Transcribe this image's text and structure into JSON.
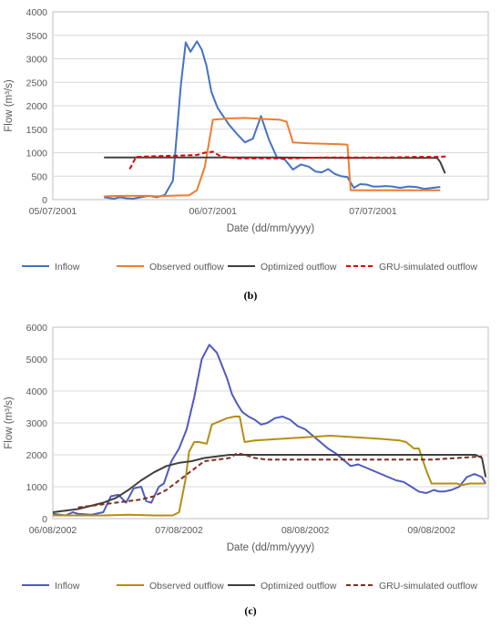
{
  "chart_data": [
    {
      "type": "line",
      "panel_label": "(b)",
      "xlabel": "Date (dd/mm/yyyy)",
      "ylabel": "Flow (m³/s)",
      "ylim": [
        0,
        4000
      ],
      "yticks": [
        0,
        500,
        1000,
        1500,
        2000,
        2500,
        3000,
        3500,
        4000
      ],
      "xlim": [
        0,
        2.72
      ],
      "x_unit": "days since 05/07/2001",
      "xtick_positions": [
        0,
        1,
        2
      ],
      "xtick_labels": [
        "05/07/2001",
        "06/07/2001",
        "07/07/2001"
      ],
      "grid": "horizontal",
      "legend_position": "bottom",
      "series": [
        {
          "name": "Inflow",
          "color": "#4472C4",
          "dash": "solid",
          "x": [
            0.32,
            0.38,
            0.42,
            0.46,
            0.5,
            0.55,
            0.6,
            0.65,
            0.7,
            0.75,
            0.8,
            0.83,
            0.86,
            0.9,
            0.93,
            0.96,
            0.99,
            1.03,
            1.06,
            1.1,
            1.15,
            1.2,
            1.25,
            1.3,
            1.35,
            1.4,
            1.45,
            1.5,
            1.55,
            1.6,
            1.64,
            1.68,
            1.72,
            1.76,
            1.8,
            1.84,
            1.88,
            1.92,
            1.96,
            2.0,
            2.04,
            2.08,
            2.12,
            2.17,
            2.22,
            2.27,
            2.32,
            2.37,
            2.42
          ],
          "y": [
            50,
            20,
            50,
            30,
            20,
            50,
            80,
            50,
            100,
            400,
            2450,
            3350,
            3150,
            3370,
            3200,
            2850,
            2300,
            1950,
            1800,
            1600,
            1400,
            1220,
            1300,
            1780,
            1280,
            900,
            850,
            640,
            750,
            700,
            600,
            580,
            650,
            550,
            500,
            480,
            250,
            330,
            320,
            280,
            280,
            290,
            280,
            250,
            280,
            270,
            230,
            250,
            270
          ]
        },
        {
          "name": "Observed outflow",
          "color": "#ED7D31",
          "dash": "solid",
          "x": [
            0.32,
            0.42,
            0.5,
            0.6,
            0.65,
            0.72,
            0.8,
            0.85,
            0.9,
            0.95,
            1.0,
            1.1,
            1.2,
            1.3,
            1.42,
            1.46,
            1.5,
            1.6,
            1.7,
            1.8,
            1.84,
            1.86,
            2.2,
            2.3,
            2.42
          ],
          "y": [
            70,
            80,
            80,
            80,
            70,
            80,
            90,
            90,
            200,
            700,
            1700,
            1730,
            1740,
            1720,
            1700,
            1660,
            1220,
            1200,
            1190,
            1180,
            1170,
            200,
            200,
            200,
            200
          ]
        },
        {
          "name": "Optimized outflow",
          "color": "#404040",
          "dash": "solid",
          "x": [
            0.32,
            0.6,
            1.0,
            1.4,
            1.8,
            2.2,
            2.4,
            2.42,
            2.45
          ],
          "y": [
            900,
            900,
            900,
            900,
            890,
            890,
            890,
            800,
            560
          ]
        },
        {
          "name": "GRU-simulated outflow",
          "color": "#E00000",
          "dash": "dashed",
          "x": [
            0.48,
            0.52,
            0.6,
            0.7,
            0.8,
            0.9,
            0.95,
            1.0,
            1.05,
            1.15,
            1.3,
            1.5,
            1.7,
            1.9,
            2.1,
            2.3,
            2.42,
            2.46
          ],
          "y": [
            650,
            910,
            920,
            930,
            940,
            950,
            1000,
            1020,
            920,
            880,
            880,
            880,
            900,
            900,
            900,
            910,
            910,
            920
          ]
        }
      ]
    },
    {
      "type": "line",
      "panel_label": "(c)",
      "xlabel": "Date (dd/mm/yyyy)",
      "ylabel": "Flow (m³/s)",
      "ylim": [
        0,
        6000
      ],
      "yticks": [
        0,
        1000,
        2000,
        3000,
        4000,
        5000,
        6000
      ],
      "xlim": [
        0,
        3.45
      ],
      "x_unit": "days since 06/08/2002",
      "xtick_positions": [
        0,
        1,
        2,
        3
      ],
      "xtick_labels": [
        "06/08/2002",
        "07/08/2002",
        "08/08/2002",
        "09/08/2002"
      ],
      "grid": "horizontal",
      "legend_position": "bottom",
      "series": [
        {
          "name": "Inflow",
          "color": "#4F5BBD",
          "dash": "solid",
          "x": [
            0.0,
            0.1,
            0.16,
            0.2,
            0.3,
            0.4,
            0.46,
            0.52,
            0.58,
            0.64,
            0.7,
            0.74,
            0.78,
            0.84,
            0.88,
            0.94,
            1.0,
            1.06,
            1.12,
            1.18,
            1.24,
            1.3,
            1.34,
            1.38,
            1.42,
            1.46,
            1.5,
            1.55,
            1.6,
            1.65,
            1.7,
            1.76,
            1.82,
            1.88,
            1.94,
            2.0,
            2.06,
            2.12,
            2.18,
            2.24,
            2.3,
            2.36,
            2.42,
            2.48,
            2.54,
            2.6,
            2.66,
            2.72,
            2.78,
            2.84,
            2.9,
            2.96,
            3.02,
            3.06,
            3.1,
            3.16,
            3.22,
            3.28,
            3.34,
            3.4,
            3.43
          ],
          "y": [
            150,
            100,
            200,
            150,
            120,
            200,
            700,
            750,
            500,
            950,
            1000,
            550,
            500,
            1000,
            1100,
            1800,
            2200,
            2800,
            3800,
            5000,
            5450,
            5200,
            4800,
            4400,
            3900,
            3600,
            3350,
            3200,
            3100,
            2950,
            3000,
            3150,
            3200,
            3100,
            2900,
            2800,
            2600,
            2400,
            2200,
            2050,
            1850,
            1650,
            1700,
            1600,
            1500,
            1400,
            1300,
            1200,
            1150,
            1000,
            850,
            800,
            900,
            850,
            850,
            900,
            1000,
            1300,
            1400,
            1300,
            1100
          ]
        },
        {
          "name": "Observed outflow",
          "color": "#B58E17",
          "dash": "solid",
          "x": [
            0.0,
            0.2,
            0.4,
            0.6,
            0.8,
            0.95,
            1.0,
            1.05,
            1.08,
            1.12,
            1.16,
            1.22,
            1.26,
            1.32,
            1.38,
            1.44,
            1.48,
            1.52,
            1.6,
            1.8,
            2.0,
            2.2,
            2.4,
            2.6,
            2.75,
            2.8,
            2.86,
            2.9,
            2.96,
            3.0,
            3.2,
            3.24,
            3.3,
            3.4,
            3.43
          ],
          "y": [
            100,
            100,
            100,
            120,
            100,
            100,
            200,
            1200,
            2100,
            2400,
            2400,
            2350,
            2950,
            3050,
            3150,
            3200,
            3200,
            2400,
            2450,
            2500,
            2550,
            2600,
            2550,
            2500,
            2450,
            2400,
            2200,
            2200,
            1500,
            1100,
            1100,
            1050,
            1100,
            1100,
            1100
          ]
        },
        {
          "name": "Optimized outflow",
          "color": "#404040",
          "dash": "solid",
          "x": [
            0.0,
            0.1,
            0.2,
            0.3,
            0.4,
            0.5,
            0.6,
            0.7,
            0.8,
            0.9,
            1.0,
            1.1,
            1.2,
            1.3,
            1.4,
            1.5,
            2.0,
            2.5,
            3.0,
            3.35,
            3.4,
            3.43
          ],
          "y": [
            200,
            250,
            300,
            400,
            500,
            650,
            900,
            1200,
            1450,
            1650,
            1750,
            1800,
            1900,
            1950,
            2000,
            2000,
            2000,
            2000,
            2000,
            2000,
            1900,
            1300
          ]
        },
        {
          "name": "GRU-simulated outflow",
          "color": "#7B2F1E",
          "dash": "dashed",
          "x": [
            0.2,
            0.3,
            0.4,
            0.5,
            0.6,
            0.7,
            0.8,
            0.9,
            1.0,
            1.1,
            1.2,
            1.3,
            1.4,
            1.46,
            1.52,
            1.6,
            1.7,
            1.8,
            2.0,
            2.5,
            3.0,
            3.2,
            3.4
          ],
          "y": [
            350,
            400,
            450,
            500,
            550,
            600,
            700,
            900,
            1200,
            1500,
            1800,
            1850,
            1900,
            2050,
            2000,
            1900,
            1850,
            1850,
            1850,
            1850,
            1850,
            1900,
            1950
          ]
        }
      ]
    }
  ]
}
